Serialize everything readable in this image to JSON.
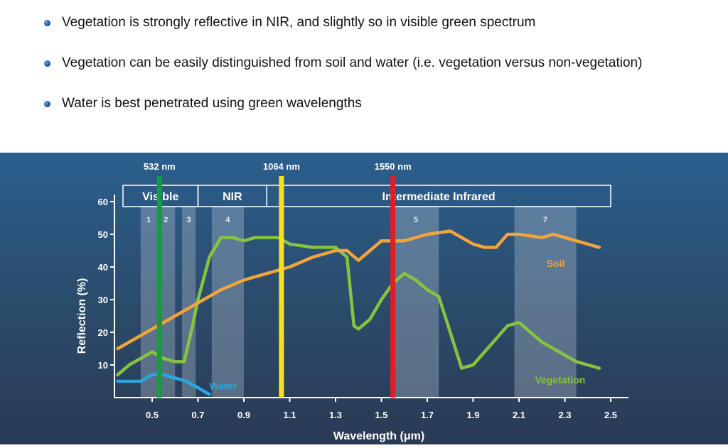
{
  "bullets": [
    "Vegetation is strongly reflective in NIR, and slightly so in visible green spectrum",
    "Vegetation can be easily distinguished from soil and water (i.e. vegetation versus non-vegetation)",
    "Water is best penetrated using green wavelengths"
  ],
  "chart_data": {
    "type": "line",
    "title": "",
    "xlabel": "Wavelength (μm)",
    "ylabel": "Reflection (%)",
    "xlim": [
      0.35,
      2.5
    ],
    "ylim": [
      0,
      65
    ],
    "x_ticks": [
      {
        "v": 0.5,
        "label": "0.5"
      },
      {
        "v": 0.7,
        "label": "0.7"
      },
      {
        "v": 0.9,
        "label": "0.9"
      },
      {
        "v": 1.1,
        "label": "1.1"
      },
      {
        "v": 1.3,
        "label": "1.3"
      },
      {
        "v": 1.5,
        "label": "1.5"
      },
      {
        "v": 1.7,
        "label": "1.7"
      },
      {
        "v": 1.9,
        "label": "1.9"
      },
      {
        "v": 2.1,
        "label": "2.1"
      },
      {
        "v": 2.3,
        "label": "2.3"
      },
      {
        "v": 2.5,
        "label": "2.5"
      }
    ],
    "y_ticks": [
      {
        "v": 10,
        "label": "10"
      },
      {
        "v": 20,
        "label": "20"
      },
      {
        "v": 30,
        "label": "30"
      },
      {
        "v": 40,
        "label": "40"
      },
      {
        "v": 50,
        "label": "50"
      },
      {
        "v": 60,
        "label": "60"
      }
    ],
    "regions": [
      {
        "label": "Visible",
        "from": 0.35,
        "to": 0.7
      },
      {
        "label": "NIR",
        "from": 0.7,
        "to": 1.0
      },
      {
        "label": "Intermediate Infrared",
        "from": 1.0,
        "to": 2.5
      }
    ],
    "bands": [
      {
        "label": "1",
        "from": 0.45,
        "to": 0.52
      },
      {
        "label": "2",
        "from": 0.52,
        "to": 0.6
      },
      {
        "label": "3",
        "from": 0.63,
        "to": 0.69
      },
      {
        "label": "4",
        "from": 0.76,
        "to": 0.9
      },
      {
        "label": "5",
        "from": 1.55,
        "to": 1.75
      },
      {
        "label": "7",
        "from": 2.08,
        "to": 2.35
      }
    ],
    "laser_lines": [
      {
        "label": "532 nm",
        "wavelength": 0.532,
        "color": "#1a9a3c"
      },
      {
        "label": "1064 nm",
        "wavelength": 1.064,
        "color": "#f5e31a"
      },
      {
        "label": "1550 nm",
        "wavelength": 1.55,
        "color": "#e0201c"
      }
    ],
    "series": [
      {
        "name": "Vegetation",
        "color": "#86c440",
        "x": [
          0.35,
          0.4,
          0.45,
          0.5,
          0.55,
          0.6,
          0.64,
          0.67,
          0.7,
          0.75,
          0.8,
          0.85,
          0.9,
          0.95,
          1.0,
          1.05,
          1.1,
          1.2,
          1.3,
          1.35,
          1.38,
          1.4,
          1.45,
          1.5,
          1.55,
          1.6,
          1.65,
          1.7,
          1.75,
          1.8,
          1.85,
          1.9,
          1.95,
          2.0,
          2.05,
          2.1,
          2.15,
          2.2,
          2.25,
          2.3,
          2.35,
          2.4,
          2.45
        ],
        "y": [
          7,
          10,
          12,
          14,
          12,
          11,
          11,
          20,
          30,
          43,
          49,
          49,
          48,
          49,
          49,
          49,
          47,
          46,
          46,
          43,
          22,
          21,
          24,
          30,
          35,
          38,
          36,
          33,
          31,
          20,
          9,
          10,
          14,
          18,
          22,
          23,
          20,
          17,
          15,
          13,
          11,
          10,
          9
        ]
      },
      {
        "name": "Soil",
        "color": "#f2a43a",
        "x": [
          0.35,
          0.5,
          0.6,
          0.7,
          0.8,
          0.9,
          1.0,
          1.1,
          1.2,
          1.3,
          1.35,
          1.4,
          1.45,
          1.5,
          1.6,
          1.7,
          1.8,
          1.9,
          1.95,
          2.0,
          2.05,
          2.1,
          2.2,
          2.25,
          2.3,
          2.4,
          2.45
        ],
        "y": [
          15,
          21,
          25,
          29,
          33,
          36,
          38,
          40,
          43,
          45,
          45,
          42,
          45,
          48,
          48,
          50,
          51,
          47,
          46,
          46,
          50,
          50,
          49,
          50,
          49,
          47,
          46
        ]
      },
      {
        "name": "Water",
        "color": "#2aa6e2",
        "x": [
          0.35,
          0.4,
          0.45,
          0.5,
          0.55,
          0.6,
          0.65,
          0.7,
          0.75
        ],
        "y": [
          5,
          5,
          5,
          7,
          7,
          6,
          5,
          3,
          1
        ]
      }
    ]
  }
}
